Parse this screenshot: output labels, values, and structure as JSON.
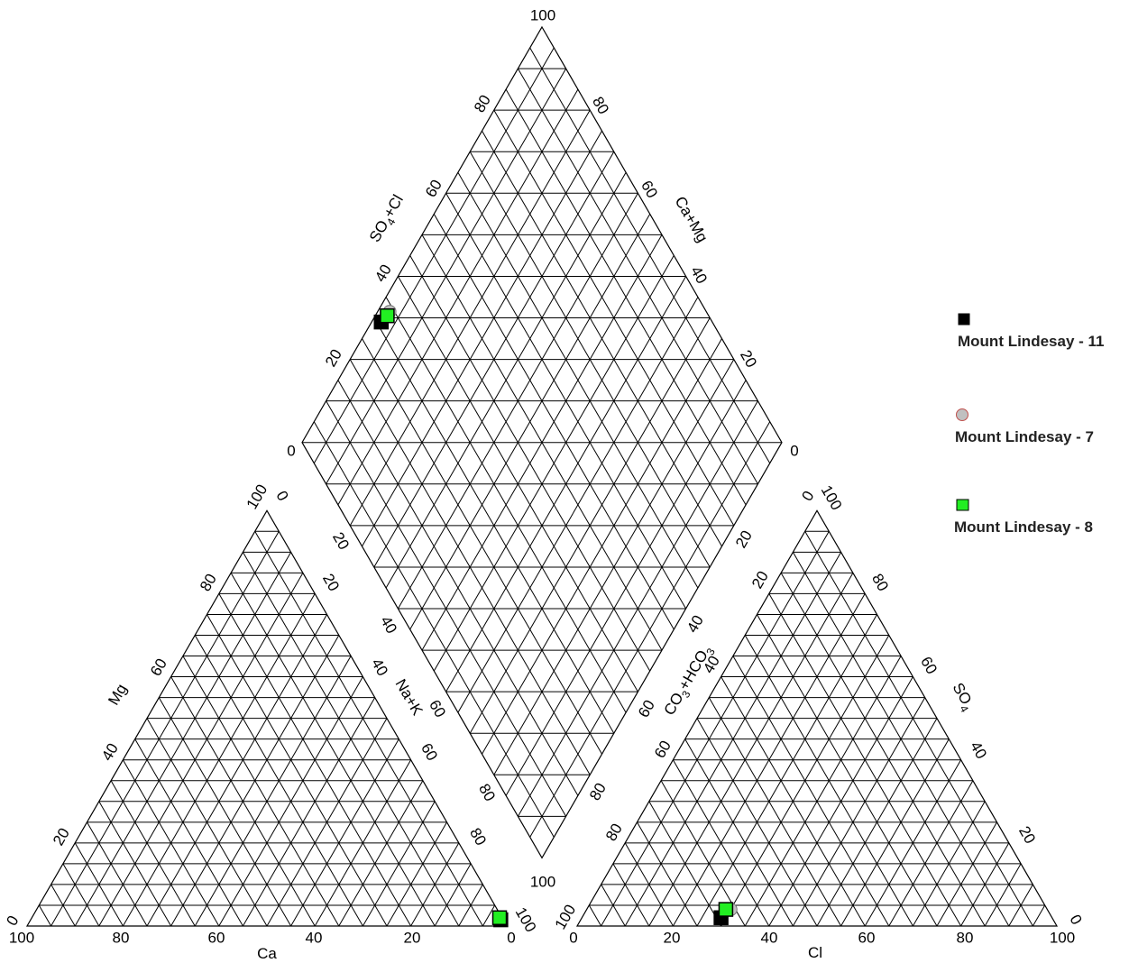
{
  "chart_data": {
    "type": "scatter",
    "subtype": "piper-trilinear",
    "title": "",
    "cation_triangle": {
      "axes": {
        "bottom": "Ca",
        "left": "Mg",
        "right": "Na+K"
      },
      "bottom_ticks": [
        "100",
        "80",
        "60",
        "40",
        "20",
        "0"
      ],
      "left_ticks": [
        "20",
        "40",
        "60",
        "80",
        "100"
      ],
      "right_ticks": [
        "0",
        "20",
        "40",
        "60",
        "80",
        "100"
      ]
    },
    "anion_triangle": {
      "axes": {
        "bottom": "Cl",
        "left": "CO3+HCO3",
        "right": "SO4"
      },
      "bottom_ticks": [
        "0",
        "20",
        "40",
        "60",
        "80",
        "100"
      ],
      "left_ticks": [
        "0",
        "20",
        "40",
        "60",
        "80",
        "100"
      ],
      "right_ticks": [
        "0",
        "20",
        "40",
        "60",
        "80",
        "100"
      ]
    },
    "diamond": {
      "axes": {
        "upper_left": "SO4+Cl",
        "upper_right": "Ca+Mg"
      },
      "ticks": [
        "0",
        "20",
        "40",
        "60",
        "80",
        "100"
      ]
    },
    "series": [
      {
        "name": "Mount Lindesay - 11",
        "marker": "square",
        "color": "#000000",
        "cation": {
          "Ca": 0.5,
          "Mg": 1.5
        },
        "anion": {
          "Cl": 29,
          "SO4": 2
        }
      },
      {
        "name": "Mount Lindesay - 7",
        "marker": "circle",
        "color": "#c0c0c0",
        "cation": {
          "Ca": 0.5,
          "Mg": 2
        },
        "anion": {
          "Cl": 30,
          "SO4": 4
        }
      },
      {
        "name": "Mount Lindesay - 8",
        "marker": "square",
        "color": "#22ee22",
        "cation": {
          "Ca": 0.5,
          "Mg": 2
        },
        "anion": {
          "Cl": 29,
          "SO4": 4
        }
      }
    ],
    "legend_position": "right"
  }
}
